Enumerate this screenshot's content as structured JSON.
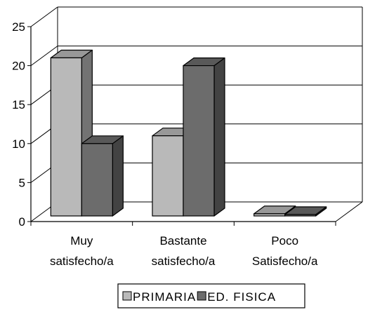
{
  "chart_data": {
    "type": "bar",
    "categories": [
      [
        "Muy",
        "satisfecho/a"
      ],
      [
        "Bastante",
        "satisfecho/a"
      ],
      [
        "Poco",
        "Satisfecho/a"
      ]
    ],
    "series": [
      {
        "name": "PRIMARIA",
        "values": [
          21,
          11,
          1
        ],
        "color": "#b9b9b9"
      },
      {
        "name": "ED. FISICA",
        "values": [
          10,
          20,
          0
        ],
        "color": "#6c6c6c"
      }
    ],
    "yticks": [
      "0",
      "5",
      "10",
      "15",
      "20",
      "25"
    ],
    "ylim": [
      0,
      25
    ],
    "grid": true,
    "legend": "bottom",
    "title": "",
    "xlabel": "",
    "ylabel": ""
  }
}
